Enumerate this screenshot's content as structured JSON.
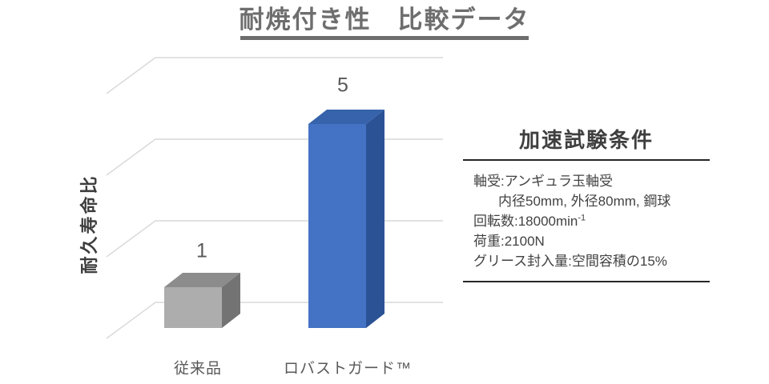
{
  "title": {
    "text": "耐焼付き性　比較データ"
  },
  "chart_data": {
    "type": "bar",
    "style": "3d-column",
    "title": "耐焼付き性　比較データ",
    "categories": [
      "従来品",
      "ロバストガード™"
    ],
    "values": [
      1,
      5
    ],
    "data_labels": [
      "1",
      "5"
    ],
    "xlabel": "",
    "ylabel": "耐久寿命比",
    "ylim": [
      0,
      6
    ],
    "gridline_values": [
      0,
      2,
      4,
      6
    ],
    "grid": "on",
    "legend": "none",
    "gridline_color": "#d9d9d9",
    "bar_colors": [
      {
        "front": "#adadad",
        "top": "#8c8c8c",
        "side": "#737373"
      },
      {
        "front": "#4472c4",
        "top": "#3763ac",
        "side": "#2b5295"
      }
    ]
  },
  "panel": {
    "title": "加速試験条件",
    "lines": [
      {
        "text": "軸受:アンギュラ玉軸受"
      },
      {
        "text": "内径50mm, 外径80mm, 鋼球"
      },
      {
        "text": "回転数:18000min",
        "sup": "-1"
      },
      {
        "text": "荷重:2100N"
      },
      {
        "text": "グリース封入量:空間容積の15%"
      }
    ]
  },
  "colors": {
    "title_gray": "#6e6e6e",
    "label_gray": "#595959",
    "panel_line": "#262626"
  }
}
